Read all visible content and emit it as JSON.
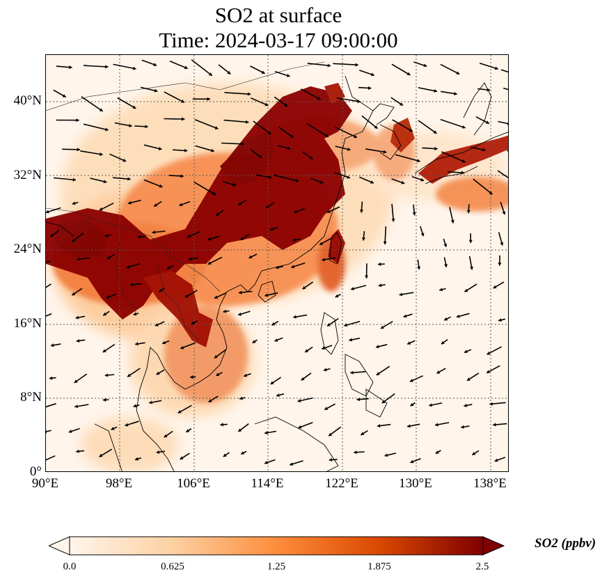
{
  "title": {
    "line1": "SO2 at surface",
    "line2": "Time: 2024-03-17 09:00:00"
  },
  "map": {
    "projection": "PlateCarree",
    "lon_range": [
      90,
      140
    ],
    "lat_range": [
      0,
      45
    ],
    "lat_ticks": [
      {
        "value": 40,
        "label": "40°N"
      },
      {
        "value": 32,
        "label": "32°N"
      },
      {
        "value": 24,
        "label": "24°N"
      },
      {
        "value": 16,
        "label": "16°N"
      },
      {
        "value": 8,
        "label": "8°N"
      },
      {
        "value": 0,
        "label": "0°"
      }
    ],
    "lon_ticks": [
      {
        "value": 90,
        "label": "90°E"
      },
      {
        "value": 98,
        "label": "98°E"
      },
      {
        "value": 106,
        "label": "106°E"
      },
      {
        "value": 114,
        "label": "114°E"
      },
      {
        "value": 122,
        "label": "122°E"
      },
      {
        "value": 130,
        "label": "130°E"
      },
      {
        "value": 138,
        "label": "138°E"
      }
    ],
    "gridlines": "dotted",
    "field": "SO2 surface concentration with wind vectors"
  },
  "colorbar": {
    "label": "SO2 (ppbv)",
    "ticks": [
      "0.0",
      "0.625",
      "1.25",
      "1.875",
      "2.5"
    ],
    "range": [
      0,
      2.5
    ],
    "extend": "both",
    "colormap": [
      "#fff5eb",
      "#fdd0a2",
      "#fd8d3c",
      "#d94801",
      "#7f0000"
    ]
  }
}
